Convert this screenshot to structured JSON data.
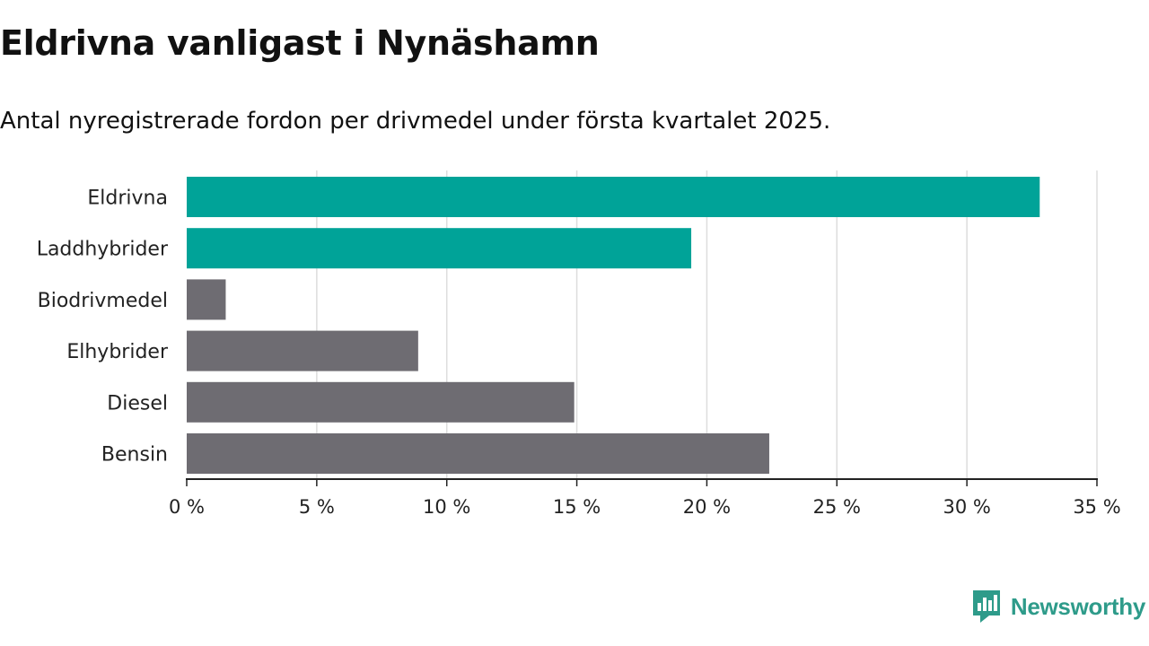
{
  "title": "Eldrivna vanligast i Nynäshamn",
  "subtitle": "Antal nyregistrerade fordon per drivmedel under första kvartalet 2025.",
  "brand": {
    "name": "Newsworthy",
    "color": "#2e9b8a",
    "icon": "newsworthy-logo-icon"
  },
  "colors": {
    "highlight": "#00a398",
    "default": "#6e6c72",
    "grid": "#dddddd",
    "axis": "#222222",
    "text": "#222222"
  },
  "chart_data": {
    "type": "bar",
    "orientation": "horizontal",
    "categories": [
      "Eldrivna",
      "Laddhybrider",
      "Biodrivmedel",
      "Elhybrider",
      "Diesel",
      "Bensin"
    ],
    "values": [
      32.8,
      19.4,
      1.5,
      8.9,
      14.9,
      22.4
    ],
    "highlighted": [
      "Eldrivna",
      "Laddhybrider"
    ],
    "xlim": [
      0,
      35
    ],
    "xticks": [
      0,
      5,
      10,
      15,
      20,
      25,
      30,
      35
    ],
    "tick_labels": [
      "0 %",
      "5 %",
      "10 %",
      "15 %",
      "20 %",
      "25 %",
      "30 %",
      "35 %"
    ],
    "grid": "vertical",
    "xlabel": "",
    "ylabel": ""
  }
}
